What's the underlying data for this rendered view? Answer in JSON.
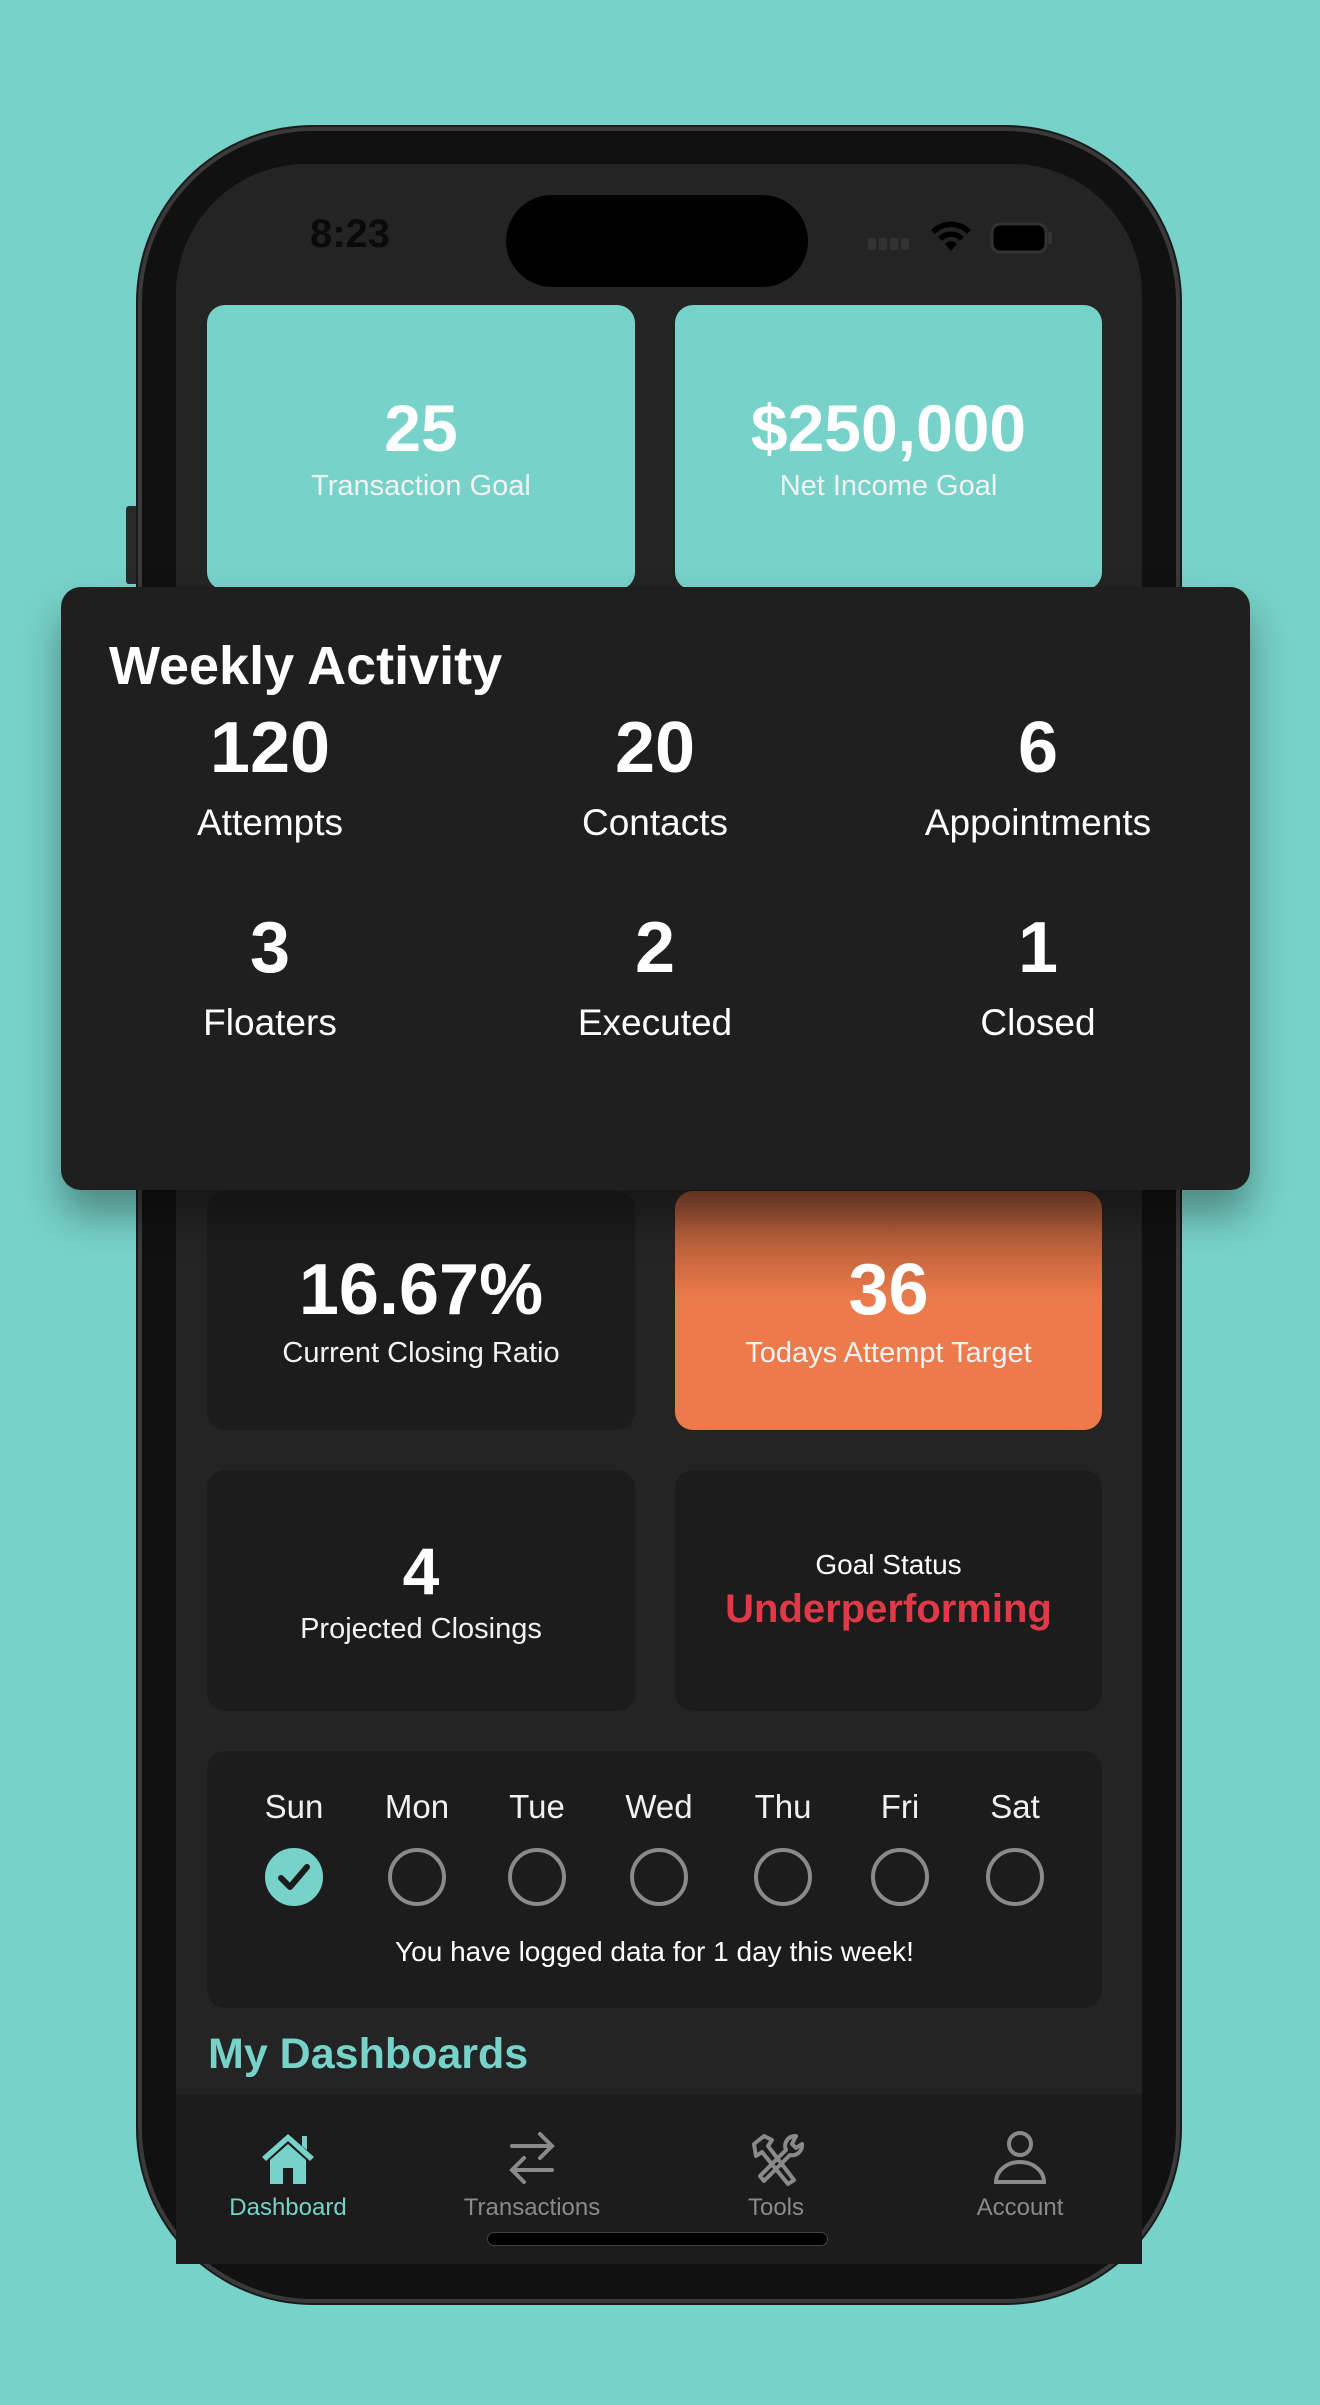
{
  "status_bar": {
    "time": "8:23"
  },
  "goals": [
    {
      "value": "25",
      "label": "Transaction Goal"
    },
    {
      "value": "$250,000",
      "label": "Net Income Goal"
    }
  ],
  "weekly_activity": {
    "title": "Weekly Activity",
    "stats": [
      {
        "value": "120",
        "label": "Attempts"
      },
      {
        "value": "20",
        "label": "Contacts"
      },
      {
        "value": "6",
        "label": "Appointments"
      },
      {
        "value": "3",
        "label": "Floaters"
      },
      {
        "value": "2",
        "label": "Executed"
      },
      {
        "value": "1",
        "label": "Closed"
      }
    ]
  },
  "metrics": {
    "closing_ratio": {
      "value": "16.67%",
      "label": "Current Closing Ratio"
    },
    "attempt_target": {
      "value": "36",
      "label": "Todays Attempt Target"
    },
    "projected": {
      "value": "4",
      "label": "Projected Closings"
    },
    "goal_status": {
      "label": "Goal Status",
      "value": "Underperforming"
    }
  },
  "week_log": {
    "days": [
      {
        "label": "Sun",
        "logged": true
      },
      {
        "label": "Mon",
        "logged": false
      },
      {
        "label": "Tue",
        "logged": false
      },
      {
        "label": "Wed",
        "logged": false
      },
      {
        "label": "Thu",
        "logged": false
      },
      {
        "label": "Fri",
        "logged": false
      },
      {
        "label": "Sat",
        "logged": false
      }
    ],
    "message": "You have logged data for 1 day this week!"
  },
  "section_title": "My Dashboards",
  "tabs": [
    {
      "label": "Dashboard",
      "icon": "house-icon",
      "active": true
    },
    {
      "label": "Transactions",
      "icon": "arrows-exchange-icon"
    },
    {
      "label": "Tools",
      "icon": "tools-icon"
    },
    {
      "label": "Account",
      "icon": "person-icon"
    }
  ],
  "colors": {
    "accent": "#77d2c9",
    "orange": "#ec7a4a",
    "danger": "#e03a48",
    "background": "#242424"
  }
}
